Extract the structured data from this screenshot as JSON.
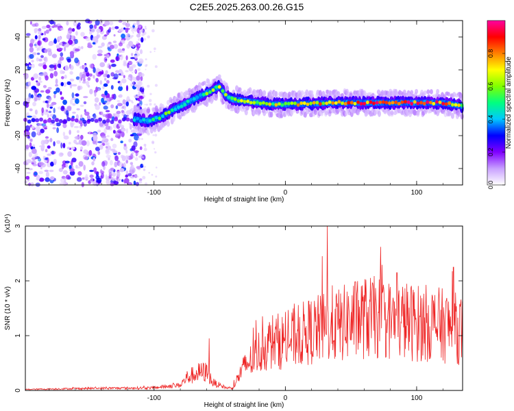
{
  "title": "C2E5.2025.263.00.26.G15",
  "chart_data": [
    {
      "type": "heatmap",
      "title": "C2E5.2025.263.00.26.G15",
      "xlabel": "Height of straight line (km)",
      "ylabel": "Frequency (Hz)",
      "xlim": [
        -198,
        135
      ],
      "ylim": [
        -50,
        50
      ],
      "xticks": [
        -100,
        0,
        100
      ],
      "yticks": [
        -40,
        -20,
        0,
        20,
        40
      ],
      "colorbar": {
        "label": "Normalized spectral amplitude",
        "range": [
          0,
          1
        ],
        "ticks": [
          0.0,
          0.2,
          0.4,
          0.6,
          0.8
        ],
        "colors": [
          "#ffffff",
          "#c8a0ff",
          "#8000ff",
          "#0000ff",
          "#00c8ff",
          "#00ff80",
          "#80ff00",
          "#ffff00",
          "#ff8000",
          "#ff0000",
          "#ff00a0"
        ]
      },
      "ridge": {
        "description": "frequency trace of main signal",
        "x": [
          -115,
          -105,
          -95,
          -85,
          -75,
          -65,
          -55,
          -50,
          -45,
          -40,
          -30,
          -20,
          -10,
          0,
          20,
          40,
          60,
          80,
          100,
          120,
          135
        ],
        "y": [
          -10,
          -11,
          -9,
          -4,
          0,
          4,
          8,
          10,
          4,
          2,
          1,
          0,
          -1,
          -1,
          -0.5,
          0,
          0,
          0,
          0,
          0,
          -2
        ],
        "amplitude": [
          0.35,
          0.4,
          0.45,
          0.5,
          0.5,
          0.5,
          0.55,
          0.6,
          0.5,
          0.55,
          0.6,
          0.6,
          0.6,
          0.65,
          0.7,
          0.75,
          0.85,
          0.9,
          0.85,
          0.8,
          0.6
        ]
      },
      "noise_region": {
        "x_range": [
          -198,
          -108
        ],
        "y_range": [
          -50,
          50
        ]
      }
    },
    {
      "type": "line",
      "xlabel": "Height of straight line (km)",
      "ylabel": "SNR (10 * v/v)",
      "y_multiplier": "(x10⁴)",
      "xlim": [
        -198,
        135
      ],
      "ylim": [
        0,
        3
      ],
      "xticks": [
        -100,
        0,
        100
      ],
      "yticks": [
        0,
        1,
        2,
        3
      ],
      "color": "#ee2222",
      "series": [
        {
          "name": "SNR",
          "x": [
            -198,
            -150,
            -100,
            -90,
            -80,
            -75,
            -70,
            -65,
            -60,
            -55,
            -50,
            -45,
            -40,
            -35,
            -30,
            -25,
            -20,
            -15,
            -10,
            -5,
            0,
            10,
            20,
            30,
            35,
            40,
            50,
            60,
            70,
            80,
            90,
            100,
            110,
            120,
            130,
            135
          ],
          "y": [
            0.02,
            0.04,
            0.05,
            0.08,
            0.1,
            0.25,
            0.3,
            0.35,
            0.35,
            0.15,
            0.1,
            0.05,
            0.05,
            0.3,
            0.5,
            0.6,
            0.75,
            0.85,
            0.95,
            0.95,
            0.95,
            1.05,
            1.15,
            1.2,
            1.3,
            1.25,
            1.35,
            1.4,
            1.4,
            1.35,
            1.35,
            1.3,
            1.3,
            1.25,
            1.2,
            1.15
          ]
        }
      ],
      "peaks": [
        {
          "x": 32,
          "y": 3.0
        },
        {
          "x": 85,
          "y": 2.15
        },
        {
          "x": 128,
          "y": 2.25
        },
        {
          "x": -58,
          "y": 0.95
        },
        {
          "x": 28,
          "y": 2.45
        }
      ]
    }
  ]
}
